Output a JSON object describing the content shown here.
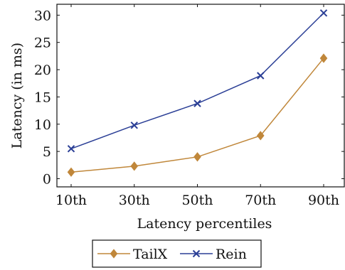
{
  "chart_data": {
    "type": "line",
    "categories": [
      "10th",
      "30th",
      "50th",
      "70th",
      "90th"
    ],
    "series": [
      {
        "name": "TailX",
        "values": [
          1.2,
          2.3,
          4.0,
          7.9,
          22.1
        ],
        "color": "#c0873a",
        "marker": "diamond"
      },
      {
        "name": "Rein",
        "values": [
          5.5,
          9.8,
          13.8,
          18.9,
          30.4
        ],
        "color": "#2b3f96",
        "marker": "x"
      }
    ],
    "xlabel": "Latency percentiles",
    "ylabel": "Latency (in ms)",
    "ylim": [
      -1.5,
      32
    ],
    "yticks": [
      0,
      5,
      10,
      15,
      20,
      25,
      30
    ],
    "grid": false,
    "legend_position": "bottom-center"
  }
}
